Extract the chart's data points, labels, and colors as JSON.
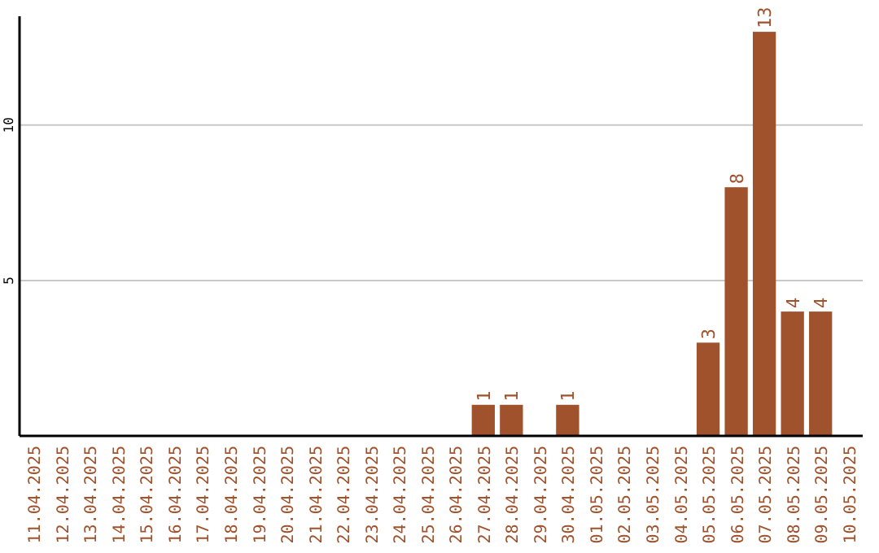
{
  "chart_data": {
    "type": "bar",
    "categories": [
      "11.04.2025",
      "12.04.2025",
      "13.04.2025",
      "14.04.2025",
      "15.04.2025",
      "16.04.2025",
      "17.04.2025",
      "18.04.2025",
      "19.04.2025",
      "20.04.2025",
      "21.04.2025",
      "22.04.2025",
      "23.04.2025",
      "24.04.2025",
      "25.04.2025",
      "26.04.2025",
      "27.04.2025",
      "28.04.2025",
      "29.04.2025",
      "30.04.2025",
      "01.05.2025",
      "02.05.2025",
      "03.05.2025",
      "04.05.2025",
      "05.05.2025",
      "06.05.2025",
      "07.05.2025",
      "08.05.2025",
      "09.05.2025",
      "10.05.2025"
    ],
    "values": [
      0,
      0,
      0,
      0,
      0,
      0,
      0,
      0,
      0,
      0,
      0,
      0,
      0,
      0,
      0,
      0,
      1,
      1,
      0,
      1,
      0,
      0,
      0,
      0,
      3,
      8,
      13,
      4,
      4,
      0
    ],
    "value_labels": [
      null,
      null,
      null,
      null,
      null,
      null,
      null,
      null,
      null,
      null,
      null,
      null,
      null,
      null,
      null,
      null,
      "1",
      "1",
      null,
      "1",
      null,
      null,
      null,
      null,
      "3",
      "8",
      "13",
      "4",
      "4",
      null
    ],
    "color": "#a0522d",
    "ylim": [
      0,
      13.5
    ],
    "yticks": [
      5,
      10
    ],
    "grid": "y"
  }
}
